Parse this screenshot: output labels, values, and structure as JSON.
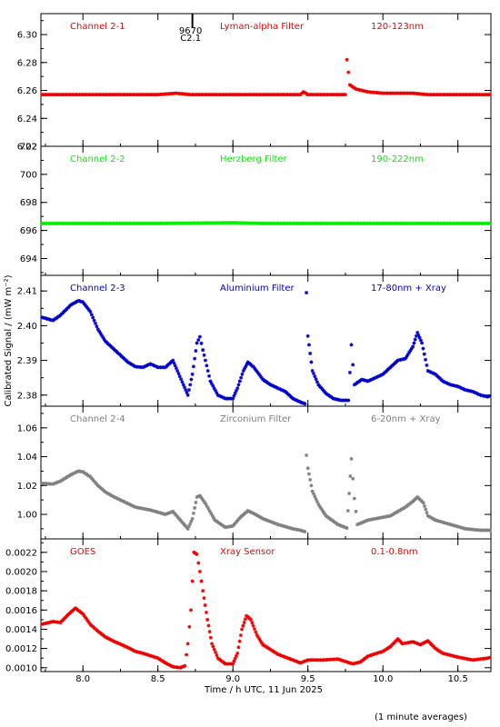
{
  "chart_data": {
    "type": "scatter",
    "x_axis": {
      "label": "Time / h UTC, 11 Jun 2025",
      "range": [
        7.72,
        10.72
      ],
      "ticks": [
        8.0,
        8.5,
        9.0,
        9.5,
        10.0,
        10.5
      ],
      "tick_labels": [
        "8.0",
        "8.5",
        "9.0",
        "9.5",
        "10.0",
        "10.5"
      ]
    },
    "y_axis_label": "Calibrated Signal / (mW m⁻²)",
    "footnote": "(1 minute averages)",
    "flare_marker": {
      "x": 8.73,
      "number": "9670",
      "class": "C2.1"
    },
    "panels": [
      {
        "channel": "Channel 2-1",
        "filter": "Lyman-alpha Filter",
        "band": "120-123nm",
        "color": "#ee0000",
        "ylim": [
          6.22,
          6.315
        ],
        "ticks": [
          6.22,
          6.24,
          6.26,
          6.28,
          6.3
        ],
        "tick_labels": [
          "6.22",
          "6.24",
          "6.26",
          "6.28",
          "6.30"
        ],
        "series": [
          [
            7.72,
            6.257
          ],
          [
            8.5,
            6.257
          ],
          [
            8.62,
            6.258
          ],
          [
            8.72,
            6.257
          ],
          [
            9.3,
            6.257
          ],
          [
            9.45,
            6.257
          ],
          [
            9.47,
            6.259
          ],
          [
            9.5,
            6.257
          ],
          [
            9.75,
            6.257
          ],
          [
            9.76,
            6.282
          ],
          [
            9.78,
            6.264
          ],
          [
            9.82,
            6.261
          ],
          [
            9.9,
            6.259
          ],
          [
            10.0,
            6.258
          ],
          [
            10.2,
            6.258
          ],
          [
            10.3,
            6.257
          ],
          [
            10.72,
            6.257
          ]
        ]
      },
      {
        "channel": "Channel 2-2",
        "filter": "Herzberg Filter",
        "band": "190-222nm",
        "color": "#00ee00",
        "ylim": [
          692.8,
          702.0
        ],
        "ticks": [
          694,
          696,
          698,
          700,
          702
        ],
        "tick_labels": [
          "694",
          "696",
          "698",
          "700",
          "702"
        ],
        "series": [
          [
            7.72,
            696.5
          ],
          [
            8.5,
            696.5
          ],
          [
            9.0,
            696.55
          ],
          [
            9.2,
            696.5
          ],
          [
            9.5,
            696.5
          ],
          [
            10.0,
            696.5
          ],
          [
            10.5,
            696.5
          ],
          [
            10.72,
            696.5
          ]
        ]
      },
      {
        "channel": "Channel 2-3",
        "filter": "Aluminium Filter",
        "band": "17-80nm + Xray",
        "color": "#0000cc",
        "ylim": [
          2.3768,
          2.4145
        ],
        "ticks": [
          2.38,
          2.39,
          2.4,
          2.41
        ],
        "tick_labels": [
          "2.38",
          "2.39",
          "2.40",
          "2.41"
        ],
        "series": [
          [
            7.72,
            2.4025
          ],
          [
            7.8,
            2.4015
          ],
          [
            7.85,
            2.403
          ],
          [
            7.92,
            2.406
          ],
          [
            7.97,
            2.4072
          ],
          [
            8.0,
            2.4068
          ],
          [
            8.05,
            2.404
          ],
          [
            8.1,
            2.399
          ],
          [
            8.15,
            2.3955
          ],
          [
            8.2,
            2.3935
          ],
          [
            8.25,
            2.3915
          ],
          [
            8.3,
            2.3895
          ],
          [
            8.35,
            2.3882
          ],
          [
            8.4,
            2.388
          ],
          [
            8.45,
            2.389
          ],
          [
            8.5,
            2.388
          ],
          [
            8.55,
            2.388
          ],
          [
            8.6,
            2.39
          ],
          [
            8.63,
            2.387
          ],
          [
            8.67,
            2.383
          ],
          [
            8.7,
            2.38
          ],
          [
            8.73,
            2.386
          ],
          [
            8.76,
            2.395
          ],
          [
            8.78,
            2.3968
          ],
          [
            8.8,
            2.393
          ],
          [
            8.85,
            2.384
          ],
          [
            8.9,
            2.38
          ],
          [
            8.95,
            2.379
          ],
          [
            9.0,
            2.379
          ],
          [
            9.03,
            2.382
          ],
          [
            9.07,
            2.387
          ],
          [
            9.1,
            2.3895
          ],
          [
            9.14,
            2.388
          ],
          [
            9.2,
            2.3845
          ],
          [
            9.25,
            2.383
          ],
          [
            9.3,
            2.382
          ],
          [
            9.35,
            2.381
          ],
          [
            9.4,
            2.379
          ],
          [
            9.45,
            2.378
          ],
          [
            9.48,
            2.3775
          ],
          [
            9.49,
            2.4095
          ],
          [
            9.5,
            2.397
          ],
          [
            9.53,
            2.387
          ],
          [
            9.57,
            2.383
          ],
          [
            9.62,
            2.3805
          ],
          [
            9.67,
            2.379
          ],
          [
            9.72,
            2.3785
          ],
          [
            9.77,
            2.3785
          ],
          [
            9.79,
            2.3945
          ],
          [
            9.81,
            2.383
          ],
          [
            9.86,
            2.3845
          ],
          [
            9.9,
            2.384
          ],
          [
            9.95,
            2.385
          ],
          [
            10.0,
            2.386
          ],
          [
            10.05,
            2.388
          ],
          [
            10.1,
            2.39
          ],
          [
            10.15,
            2.3905
          ],
          [
            10.2,
            2.394
          ],
          [
            10.23,
            2.398
          ],
          [
            10.26,
            2.395
          ],
          [
            10.3,
            2.387
          ],
          [
            10.35,
            2.386
          ],
          [
            10.4,
            2.384
          ],
          [
            10.45,
            2.383
          ],
          [
            10.5,
            2.3825
          ],
          [
            10.55,
            2.3815
          ],
          [
            10.6,
            2.381
          ],
          [
            10.65,
            2.38
          ],
          [
            10.7,
            2.3795
          ],
          [
            10.72,
            2.38
          ]
        ]
      },
      {
        "channel": "Channel 2-4",
        "filter": "Zirconium Filter",
        "band": "6-20nm + Xray",
        "color": "#808080",
        "ylim": [
          0.983,
          1.075
        ],
        "ticks": [
          1.0,
          1.02,
          1.04,
          1.06
        ],
        "tick_labels": [
          "1.00",
          "1.02",
          "1.04",
          "1.06"
        ],
        "series": [
          [
            7.72,
            1.0215
          ],
          [
            7.8,
            1.021
          ],
          [
            7.85,
            1.023
          ],
          [
            7.92,
            1.0275
          ],
          [
            7.97,
            1.03
          ],
          [
            8.0,
            1.0295
          ],
          [
            8.05,
            1.026
          ],
          [
            8.1,
            1.02
          ],
          [
            8.15,
            1.0155
          ],
          [
            8.2,
            1.0125
          ],
          [
            8.3,
            1.0075
          ],
          [
            8.35,
            1.005
          ],
          [
            8.4,
            1.004
          ],
          [
            8.45,
            1.003
          ],
          [
            8.5,
            1.0015
          ],
          [
            8.55,
            1.0
          ],
          [
            8.6,
            1.002
          ],
          [
            8.65,
            0.996
          ],
          [
            8.7,
            0.99
          ],
          [
            8.73,
            0.997
          ],
          [
            8.76,
            1.012
          ],
          [
            8.78,
            1.013
          ],
          [
            8.82,
            1.007
          ],
          [
            8.88,
            0.996
          ],
          [
            8.95,
            0.991
          ],
          [
            9.0,
            0.992
          ],
          [
            9.05,
            0.998
          ],
          [
            9.1,
            1.0025
          ],
          [
            9.15,
            1.0
          ],
          [
            9.2,
            0.997
          ],
          [
            9.3,
            0.993
          ],
          [
            9.4,
            0.99
          ],
          [
            9.45,
            0.989
          ],
          [
            9.48,
            0.988
          ],
          [
            9.49,
            1.041
          ],
          [
            9.5,
            1.032
          ],
          [
            9.53,
            1.016
          ],
          [
            9.57,
            1.007
          ],
          [
            9.62,
            0.999
          ],
          [
            9.7,
            0.993
          ],
          [
            9.76,
            0.9905
          ],
          [
            9.79,
            1.0385
          ],
          [
            9.81,
            1.011
          ],
          [
            9.83,
            0.993
          ],
          [
            9.9,
            0.996
          ],
          [
            10.0,
            0.998
          ],
          [
            10.05,
            0.999
          ],
          [
            10.1,
            1.002
          ],
          [
            10.15,
            1.005
          ],
          [
            10.2,
            1.009
          ],
          [
            10.23,
            1.012
          ],
          [
            10.27,
            1.008
          ],
          [
            10.3,
            0.999
          ],
          [
            10.35,
            0.996
          ],
          [
            10.45,
            0.993
          ],
          [
            10.55,
            0.99
          ],
          [
            10.65,
            0.989
          ],
          [
            10.72,
            0.989
          ]
        ]
      },
      {
        "channel": "GOES",
        "filter": "Xray Sensor",
        "band": "0.1-0.8nm",
        "color": "#ee0000",
        "ylim": [
          0.00096,
          0.00234
        ],
        "ticks": [
          0.001,
          0.0012,
          0.0014,
          0.0016,
          0.0018,
          0.002,
          0.0022
        ],
        "tick_labels": [
          "0.0010",
          "0.0012",
          "0.0014",
          "0.0016",
          "0.0018",
          "0.0020",
          "0.0022"
        ],
        "series": [
          [
            7.72,
            0.00145
          ],
          [
            7.8,
            0.00148
          ],
          [
            7.85,
            0.00147
          ],
          [
            7.9,
            0.00155
          ],
          [
            7.95,
            0.00162
          ],
          [
            8.0,
            0.00156
          ],
          [
            8.05,
            0.00145
          ],
          [
            8.1,
            0.00138
          ],
          [
            8.15,
            0.00132
          ],
          [
            8.2,
            0.00128
          ],
          [
            8.3,
            0.00121
          ],
          [
            8.35,
            0.00117
          ],
          [
            8.4,
            0.00115
          ],
          [
            8.5,
            0.0011
          ],
          [
            8.55,
            0.00105
          ],
          [
            8.6,
            0.00101
          ],
          [
            8.65,
            0.001
          ],
          [
            8.68,
            0.00102
          ],
          [
            8.7,
            0.00125
          ],
          [
            8.72,
            0.0016
          ],
          [
            8.74,
            0.0022
          ],
          [
            8.76,
            0.00218
          ],
          [
            8.78,
            0.002
          ],
          [
            8.8,
            0.0018
          ],
          [
            8.83,
            0.0015
          ],
          [
            8.86,
            0.00125
          ],
          [
            8.9,
            0.0011
          ],
          [
            8.95,
            0.00104
          ],
          [
            9.0,
            0.00104
          ],
          [
            9.03,
            0.00115
          ],
          [
            9.06,
            0.0014
          ],
          [
            9.09,
            0.00154
          ],
          [
            9.12,
            0.0015
          ],
          [
            9.16,
            0.00134
          ],
          [
            9.2,
            0.00124
          ],
          [
            9.3,
            0.00114
          ],
          [
            9.4,
            0.00108
          ],
          [
            9.45,
            0.00105
          ],
          [
            9.5,
            0.00108
          ],
          [
            9.6,
            0.00108
          ],
          [
            9.7,
            0.00109
          ],
          [
            9.8,
            0.00104
          ],
          [
            9.85,
            0.00106
          ],
          [
            9.9,
            0.00112
          ],
          [
            10.0,
            0.00117
          ],
          [
            10.05,
            0.00122
          ],
          [
            10.1,
            0.0013
          ],
          [
            10.13,
            0.00125
          ],
          [
            10.2,
            0.00127
          ],
          [
            10.25,
            0.00124
          ],
          [
            10.3,
            0.00128
          ],
          [
            10.35,
            0.0012
          ],
          [
            10.4,
            0.00115
          ],
          [
            10.5,
            0.00111
          ],
          [
            10.6,
            0.00108
          ],
          [
            10.7,
            0.0011
          ],
          [
            10.72,
            0.00111
          ]
        ]
      }
    ]
  }
}
